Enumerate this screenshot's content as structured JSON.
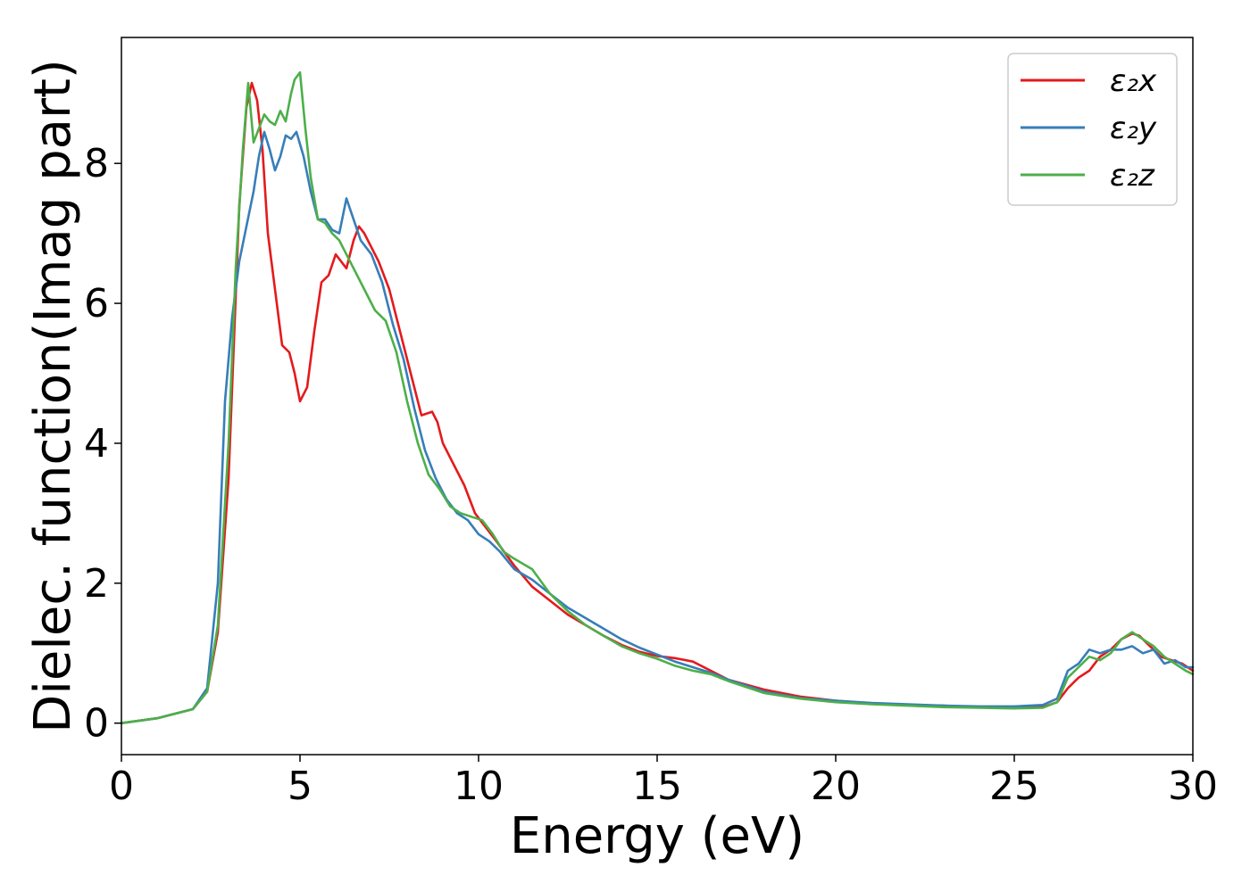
{
  "chart_data": {
    "type": "line",
    "xlabel": "Energy (eV)",
    "ylabel": "Dielec. function(Imag part)",
    "xlim": [
      0,
      30
    ],
    "ylim": [
      -0.45,
      9.8
    ],
    "xticks": [
      0,
      5,
      10,
      15,
      20,
      25,
      30
    ],
    "yticks": [
      0,
      2,
      4,
      6,
      8
    ],
    "grid": false,
    "legend_position": "top-right",
    "series": [
      {
        "name": "ε₂x",
        "color": "#e41a1c",
        "x": [
          0,
          1,
          2,
          2.4,
          2.7,
          3.0,
          3.3,
          3.5,
          3.65,
          3.8,
          3.95,
          4.1,
          4.3,
          4.5,
          4.7,
          4.85,
          5.0,
          5.2,
          5.4,
          5.6,
          5.8,
          6.0,
          6.15,
          6.3,
          6.5,
          6.65,
          6.8,
          7.0,
          7.2,
          7.5,
          7.8,
          8.1,
          8.4,
          8.7,
          8.85,
          9.0,
          9.3,
          9.6,
          9.9,
          10.2,
          10.5,
          11.0,
          11.5,
          12.0,
          12.5,
          13.0,
          13.5,
          14.0,
          14.5,
          15.0,
          15.5,
          16.0,
          16.5,
          17.0,
          18.0,
          19.0,
          20.0,
          21.0,
          22.0,
          23.0,
          24.0,
          25.0,
          25.8,
          26.2,
          26.5,
          26.8,
          27.1,
          27.4,
          27.7,
          28.0,
          28.3,
          28.5,
          28.8,
          29.1,
          29.4,
          29.7,
          30.0
        ],
        "y": [
          0.0,
          0.07,
          0.2,
          0.45,
          1.3,
          3.5,
          7.4,
          8.8,
          9.15,
          8.9,
          8.2,
          7.0,
          6.2,
          5.4,
          5.3,
          5.0,
          4.6,
          4.8,
          5.6,
          6.3,
          6.4,
          6.7,
          6.6,
          6.5,
          6.9,
          7.1,
          7.0,
          6.8,
          6.6,
          6.2,
          5.6,
          5.0,
          4.4,
          4.45,
          4.3,
          4.0,
          3.7,
          3.4,
          3.0,
          2.8,
          2.6,
          2.25,
          1.95,
          1.75,
          1.55,
          1.4,
          1.25,
          1.12,
          1.02,
          0.96,
          0.93,
          0.88,
          0.75,
          0.62,
          0.48,
          0.38,
          0.32,
          0.28,
          0.26,
          0.25,
          0.23,
          0.22,
          0.23,
          0.3,
          0.5,
          0.65,
          0.75,
          0.95,
          1.05,
          1.2,
          1.28,
          1.25,
          1.1,
          0.95,
          0.9,
          0.85,
          0.75
        ]
      },
      {
        "name": "ε₂y",
        "color": "#377eb8",
        "x": [
          0,
          1,
          2,
          2.4,
          2.7,
          2.9,
          3.1,
          3.3,
          3.5,
          3.7,
          3.85,
          4.0,
          4.15,
          4.3,
          4.45,
          4.6,
          4.75,
          4.9,
          5.1,
          5.3,
          5.5,
          5.7,
          5.9,
          6.1,
          6.3,
          6.5,
          6.7,
          7.0,
          7.3,
          7.6,
          7.9,
          8.2,
          8.5,
          8.8,
          9.1,
          9.4,
          9.7,
          10.0,
          10.3,
          10.6,
          11.0,
          11.5,
          12.0,
          12.5,
          13.0,
          13.5,
          14.0,
          14.5,
          15.0,
          15.5,
          16.0,
          16.5,
          17.0,
          18.0,
          19.0,
          20.0,
          21.0,
          22.0,
          23.0,
          24.0,
          25.0,
          25.8,
          26.2,
          26.5,
          26.8,
          27.1,
          27.4,
          27.7,
          28.0,
          28.3,
          28.6,
          28.9,
          29.2,
          29.5,
          29.8,
          30.0
        ],
        "y": [
          0.0,
          0.07,
          0.2,
          0.5,
          2.0,
          4.6,
          5.8,
          6.6,
          7.1,
          7.6,
          8.1,
          8.45,
          8.2,
          7.9,
          8.1,
          8.4,
          8.35,
          8.45,
          8.1,
          7.6,
          7.2,
          7.2,
          7.05,
          7.0,
          7.5,
          7.2,
          6.9,
          6.7,
          6.3,
          5.7,
          5.2,
          4.5,
          3.9,
          3.5,
          3.2,
          3.0,
          2.9,
          2.7,
          2.6,
          2.45,
          2.2,
          2.05,
          1.85,
          1.65,
          1.5,
          1.35,
          1.2,
          1.08,
          0.98,
          0.88,
          0.8,
          0.72,
          0.62,
          0.45,
          0.36,
          0.32,
          0.29,
          0.27,
          0.25,
          0.24,
          0.24,
          0.26,
          0.35,
          0.75,
          0.85,
          1.05,
          1.0,
          1.05,
          1.05,
          1.1,
          1.0,
          1.05,
          0.85,
          0.9,
          0.8,
          0.8
        ]
      },
      {
        "name": "ε₂z",
        "color": "#4daf4a",
        "x": [
          0,
          1,
          2,
          2.4,
          2.7,
          3.0,
          3.2,
          3.4,
          3.55,
          3.7,
          3.85,
          4.0,
          4.15,
          4.3,
          4.45,
          4.6,
          4.75,
          4.85,
          5.0,
          5.15,
          5.3,
          5.5,
          5.7,
          5.9,
          6.1,
          6.3,
          6.5,
          6.8,
          7.1,
          7.4,
          7.7,
          8.0,
          8.3,
          8.6,
          8.9,
          9.2,
          9.5,
          9.8,
          10.1,
          10.4,
          10.7,
          11.0,
          11.5,
          12.0,
          12.5,
          13.0,
          13.5,
          14.0,
          14.5,
          15.0,
          15.5,
          16.0,
          16.5,
          17.0,
          18.0,
          19.0,
          20.0,
          21.0,
          22.0,
          23.0,
          24.0,
          25.0,
          25.8,
          26.2,
          26.5,
          26.8,
          27.1,
          27.4,
          27.7,
          28.0,
          28.3,
          28.6,
          28.9,
          29.2,
          29.5,
          29.8,
          30.0
        ],
        "y": [
          0.0,
          0.07,
          0.2,
          0.45,
          1.4,
          4.0,
          6.5,
          8.2,
          9.15,
          8.3,
          8.5,
          8.7,
          8.6,
          8.55,
          8.75,
          8.6,
          9.0,
          9.2,
          9.3,
          8.5,
          7.8,
          7.2,
          7.15,
          7.0,
          6.9,
          6.7,
          6.5,
          6.2,
          5.9,
          5.75,
          5.3,
          4.6,
          4.0,
          3.55,
          3.35,
          3.1,
          3.0,
          2.95,
          2.9,
          2.7,
          2.45,
          2.35,
          2.2,
          1.85,
          1.6,
          1.4,
          1.25,
          1.1,
          1.0,
          0.92,
          0.82,
          0.75,
          0.7,
          0.6,
          0.43,
          0.35,
          0.3,
          0.27,
          0.25,
          0.23,
          0.22,
          0.21,
          0.22,
          0.3,
          0.65,
          0.8,
          0.95,
          0.9,
          1.0,
          1.2,
          1.3,
          1.2,
          1.1,
          0.95,
          0.85,
          0.75,
          0.7
        ]
      }
    ]
  }
}
